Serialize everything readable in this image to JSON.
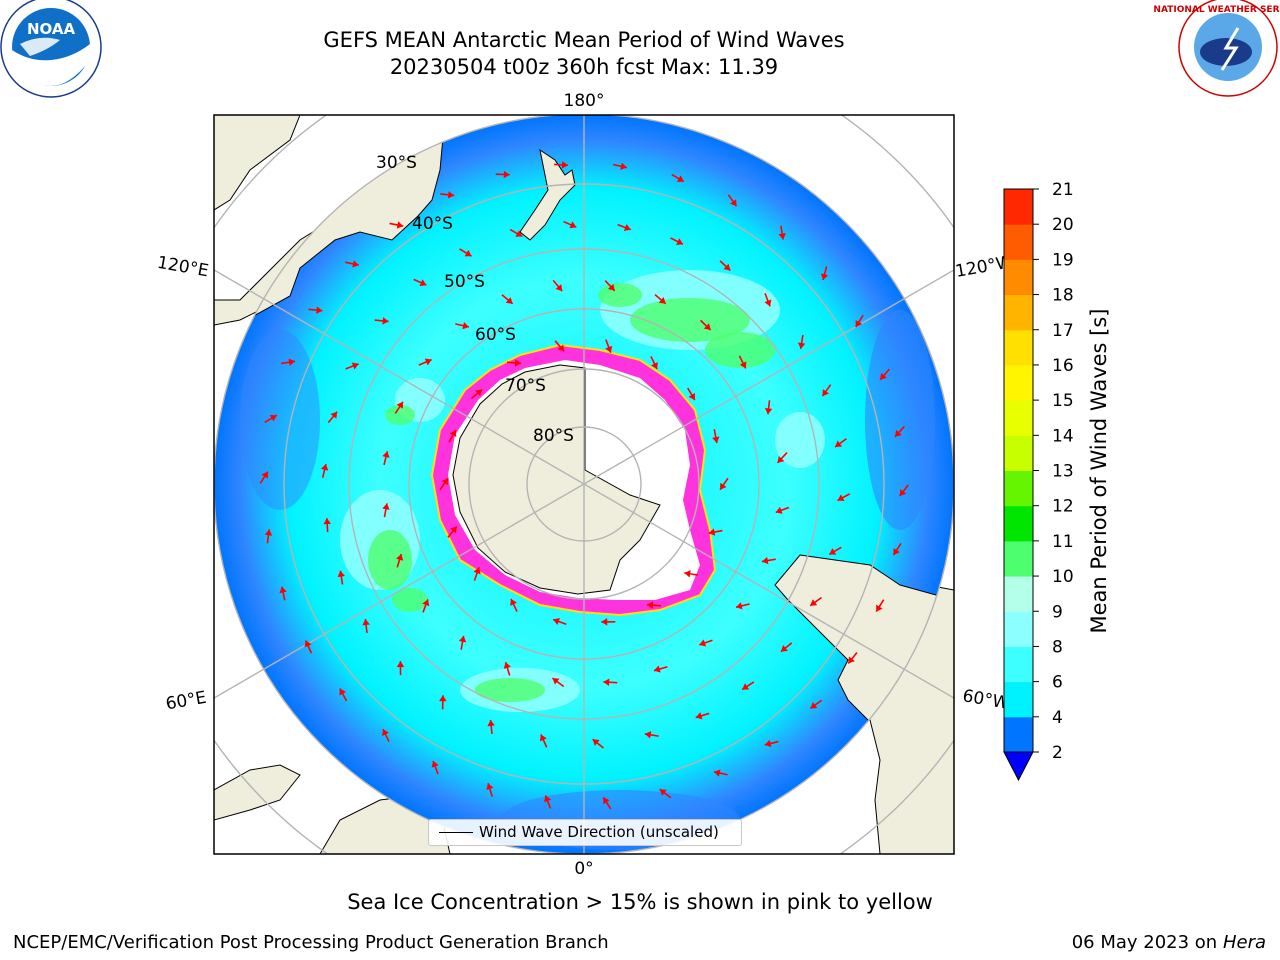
{
  "title_line1": "GEFS MEAN Antarctic Mean Period of Wind Waves",
  "title_line2": "20230504 t00z 360h fcst   Max: 11.39",
  "meridian_labels": {
    "top": "180°",
    "bottom": "0°",
    "left_upper": "120°E",
    "left_lower": "60°E",
    "right_upper": "120°W",
    "right_lower": "60°W"
  },
  "latitude_labels": [
    "30°S",
    "40°S",
    "50°S",
    "60°S",
    "70°S",
    "80°S"
  ],
  "legend": {
    "label": "Wind Wave Direction (unscaled)"
  },
  "colorbar": {
    "label": "Mean Period of Wind Waves [s]",
    "ticks": [
      "2",
      "4",
      "6",
      "8",
      "9",
      "10",
      "11",
      "12",
      "13",
      "14",
      "15",
      "16",
      "17",
      "18",
      "19",
      "20",
      "21"
    ],
    "colors": [
      "#0075ff",
      "#00f2ff",
      "#3dffff",
      "#8cffff",
      "#b4ffea",
      "#4dff6e",
      "#00e600",
      "#66f500",
      "#c8ff00",
      "#e8ff00",
      "#fff500",
      "#ffe000",
      "#ffb400",
      "#ff8c00",
      "#ff5c00",
      "#ff2800"
    ],
    "under_color": "#0000ff"
  },
  "logos": {
    "left": "NOAA",
    "right": "NATIONAL WEATHER SERVICE"
  },
  "caption": "Sea Ice Concentration > 15% is shown in pink to yellow",
  "footer_left": "NCEP/EMC/Verification Post Processing Product Generation Branch",
  "footer_right_date": "06 May 2023 on",
  "footer_right_host": "Hera",
  "colors": {
    "ocean_low": "#2f86ff",
    "ocean_mid": "#00f2ff",
    "ocean_light": "#8cffff",
    "ocean_green": "#4dff6e",
    "land": "#efeedc",
    "ice_edge": "#ff33dd",
    "arrow": "#ff0000",
    "grid": "#b4b4b4"
  }
}
